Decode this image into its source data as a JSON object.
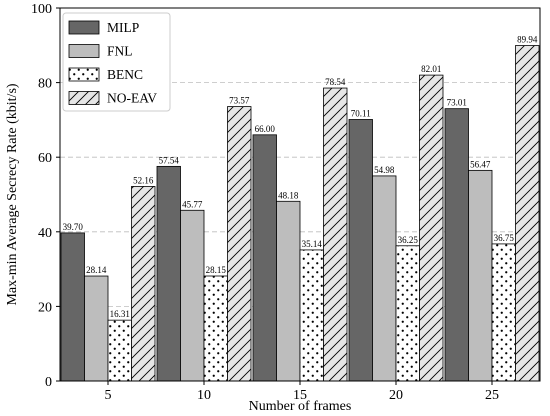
{
  "chart_data": {
    "type": "bar",
    "title": "",
    "xlabel": "Number of frames",
    "ylabel": "Max-min Average Secrecy Rate (kbit/s)",
    "categories": [
      "5",
      "10",
      "15",
      "20",
      "25"
    ],
    "ylim": [
      0,
      100
    ],
    "yticks": [
      0,
      20,
      40,
      60,
      80,
      100
    ],
    "grid": "horizontal-dashed",
    "legend_position": "top-left",
    "series": [
      {
        "name": "MILP",
        "values": [
          39.7,
          57.54,
          66.0,
          70.11,
          73.01
        ],
        "labels": [
          "39.70",
          "57.54",
          "66.00",
          "70.11",
          "73.01"
        ],
        "color": "#666666",
        "pattern": "solid"
      },
      {
        "name": "FNL",
        "values": [
          28.14,
          45.77,
          48.18,
          54.98,
          56.47
        ],
        "labels": [
          "28.14",
          "45.77",
          "48.18",
          "54.98",
          "56.47"
        ],
        "color": "#bdbdbd",
        "pattern": "solid"
      },
      {
        "name": "BENC",
        "values": [
          16.31,
          28.15,
          35.14,
          36.25,
          36.75
        ],
        "labels": [
          "16.31",
          "28.15",
          "35.14",
          "36.25",
          "36.75"
        ],
        "color": "#ffffff",
        "pattern": "dots"
      },
      {
        "name": "NO-EAV",
        "values": [
          52.16,
          73.57,
          78.54,
          82.01,
          89.94
        ],
        "labels": [
          "52.16",
          "73.57",
          "78.54",
          "82.01",
          "89.94"
        ],
        "color": "#e6e6e6",
        "pattern": "diagonal-hatch"
      }
    ]
  }
}
